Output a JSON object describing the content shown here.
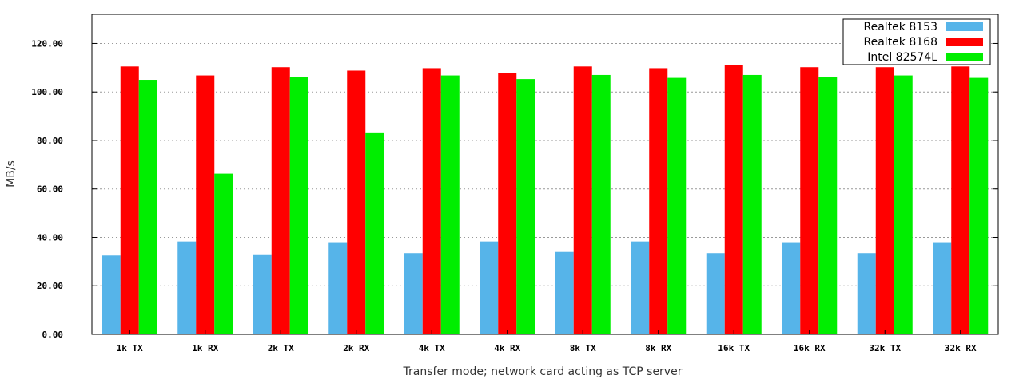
{
  "chart_data": {
    "type": "bar",
    "title": "",
    "xlabel": "Transfer mode; network card acting as TCP server",
    "ylabel": "MB/s",
    "ylim": [
      0,
      132
    ],
    "yticks": [
      "0.00",
      "20.00",
      "40.00",
      "60.00",
      "80.00",
      "100.00",
      "120.00"
    ],
    "ytick_values": [
      0,
      20,
      40,
      60,
      80,
      100,
      120
    ],
    "grid": true,
    "legend_position": "top-right",
    "categories": [
      "1k TX",
      "1k RX",
      "2k TX",
      "2k RX",
      "4k TX",
      "4k RX",
      "8k TX",
      "8k RX",
      "16k TX",
      "16k RX",
      "32k TX",
      "32k RX"
    ],
    "series": [
      {
        "name": "Realtek 8153",
        "color": "#56b4e9",
        "values": [
          32.5,
          38.3,
          33.0,
          38.0,
          33.5,
          38.3,
          34.0,
          38.3,
          33.5,
          38.0,
          33.5,
          38.0
        ]
      },
      {
        "name": "Realtek 8168",
        "color": "#ff0000",
        "values": [
          110.5,
          106.8,
          110.2,
          108.8,
          109.8,
          107.8,
          110.5,
          109.8,
          111.0,
          110.2,
          110.2,
          110.5
        ]
      },
      {
        "name": "Intel 82574L",
        "color": "#00ee00",
        "values": [
          105.0,
          66.3,
          106.0,
          83.0,
          106.8,
          105.3,
          107.0,
          105.8,
          107.0,
          106.0,
          106.8,
          105.8
        ]
      }
    ]
  }
}
